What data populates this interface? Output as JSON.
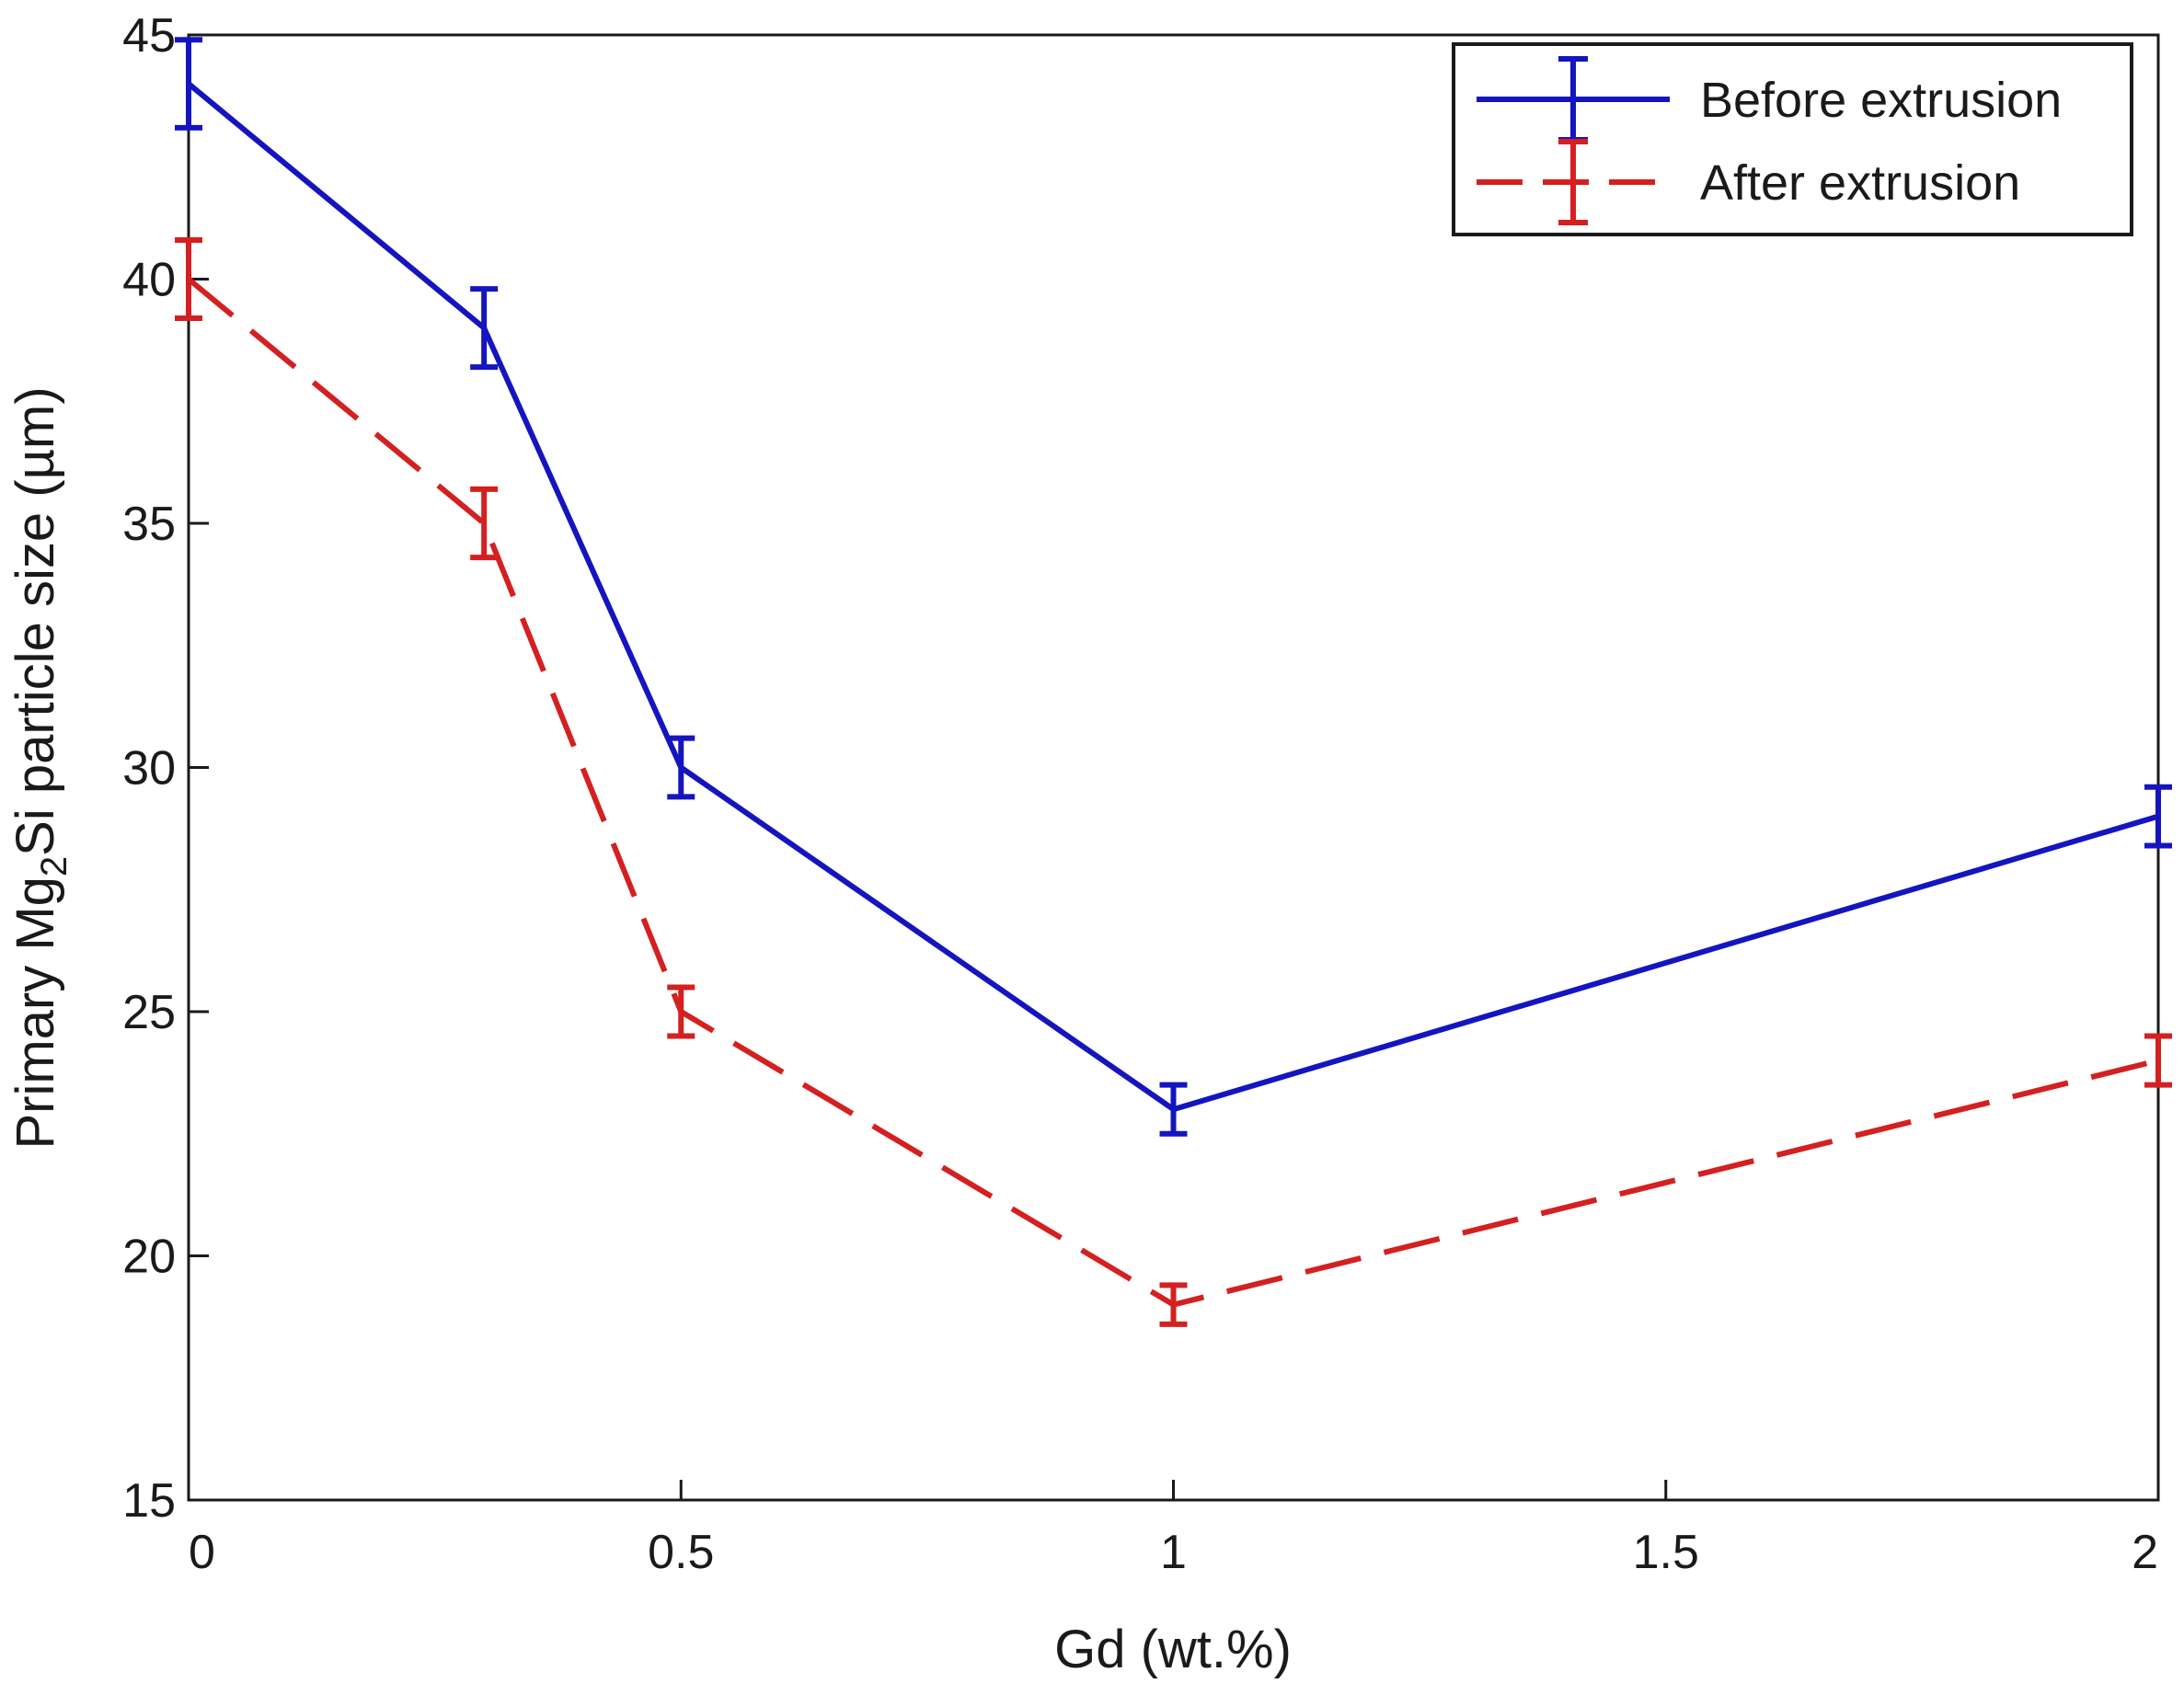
{
  "chart_data": {
    "type": "line",
    "xlabel": "Gd (wt.%)",
    "ylabel": {
      "prefix": "Primary Mg",
      "subscript": "2",
      "suffix": "Si particle size (µm)"
    },
    "xlim": [
      0,
      2
    ],
    "ylim": [
      15,
      45
    ],
    "xticks": [
      0,
      0.5,
      1,
      1.5,
      2
    ],
    "xtick_labels": [
      "0",
      "0.5",
      "1",
      "1.5",
      "2"
    ],
    "yticks": [
      15,
      20,
      25,
      30,
      35,
      40,
      45
    ],
    "ytick_labels": [
      "15",
      "20",
      "25",
      "30",
      "35",
      "40",
      "45"
    ],
    "grid": false,
    "legend_position": "top-right",
    "x": [
      0,
      0.3,
      0.5,
      1,
      2
    ],
    "series": [
      {
        "name": "Before extrusion",
        "color": "#1515c0",
        "dash": "solid",
        "values": [
          44,
          39,
          30,
          23,
          29
        ],
        "errors": [
          0.9,
          0.8,
          0.6,
          0.5,
          0.6
        ]
      },
      {
        "name": "After extrusion",
        "color": "#d42020",
        "dash": "dashed",
        "values": [
          40,
          35,
          25,
          19,
          24
        ],
        "errors": [
          0.8,
          0.7,
          0.5,
          0.4,
          0.5
        ]
      }
    ]
  }
}
